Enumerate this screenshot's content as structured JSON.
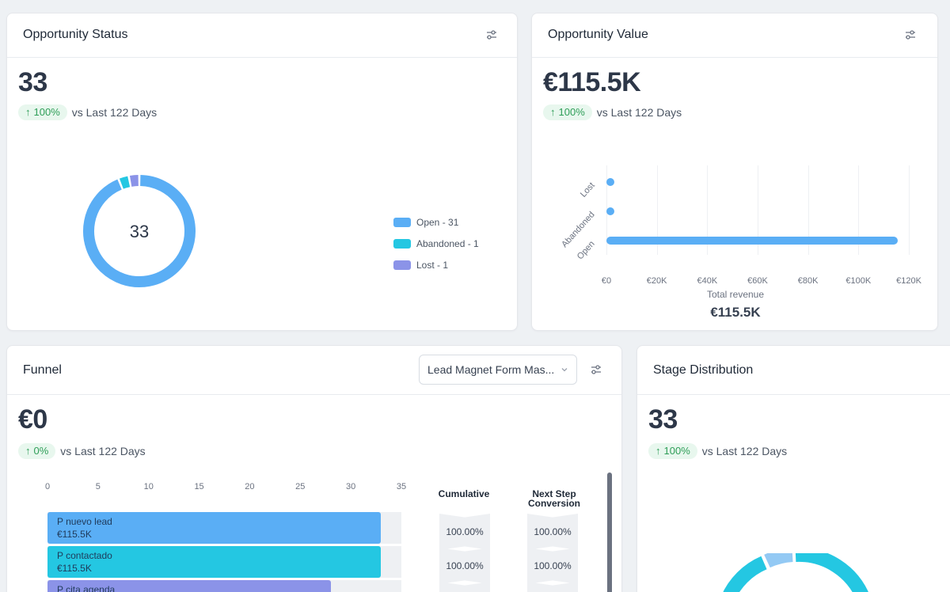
{
  "opportunity_status": {
    "title": "Opportunity Status",
    "value": "33",
    "delta": "100%",
    "delta_text": "vs Last 122 Days",
    "donut_center": "33",
    "legend": [
      {
        "label": "Open - 31",
        "color": "#5aaef5",
        "count": 31
      },
      {
        "label": "Abandoned - 1",
        "color": "#24c7e2",
        "count": 1
      },
      {
        "label": "Lost - 1",
        "color": "#8b93e8",
        "count": 1
      }
    ]
  },
  "opportunity_value": {
    "title": "Opportunity Value",
    "value": "€115.5K",
    "delta": "100%",
    "delta_text": "vs Last 122 Days",
    "chart_data": {
      "type": "bar",
      "orientation": "horizontal",
      "categories": [
        "Lost",
        "Abandoned",
        "Open"
      ],
      "values": [
        0,
        0,
        115500
      ],
      "xlim": [
        0,
        120000
      ],
      "x_ticks": [
        "€0",
        "€20K",
        "€40K",
        "€60K",
        "€80K",
        "€100K",
        "€120K"
      ],
      "grid": true,
      "color": "#5aaef5"
    },
    "total_label": "Total revenue",
    "total_value": "€115.5K"
  },
  "funnel": {
    "title": "Funnel",
    "dropdown_value": "Lead Magnet Form Mas...",
    "value": "€0",
    "delta": "0%",
    "delta_text": "vs Last 122 Days",
    "axis_ticks": [
      "0",
      "5",
      "10",
      "15",
      "20",
      "25",
      "30",
      "35"
    ],
    "col_cumulative": "Cumulative",
    "col_next_step": "Next Step\nConversion",
    "stages": [
      {
        "name": "P nuevo lead",
        "amount": "€115.5K",
        "count": 33,
        "color": "#5aaef5",
        "cumulative": "100.00%",
        "next": "100.00%"
      },
      {
        "name": "P contactado",
        "amount": "€115.5K",
        "count": 33,
        "color": "#24c7e2",
        "cumulative": "100.00%",
        "next": "100.00%"
      },
      {
        "name": "P cita agenda",
        "amount": "",
        "count": 28,
        "color": "#8b93e8",
        "cumulative": "",
        "next": ""
      }
    ]
  },
  "stage_distribution": {
    "title": "Stage Distribution",
    "value": "33",
    "delta": "100%",
    "delta_text": "vs Last 122 Days"
  }
}
